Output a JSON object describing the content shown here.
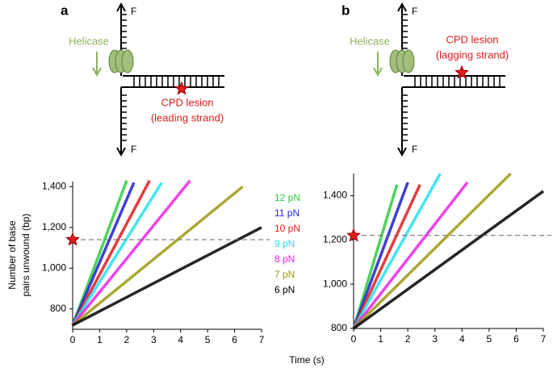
{
  "chart_data": [
    {
      "type": "line",
      "panel_label": "a",
      "annotations": {
        "helicase": "Helicase",
        "lesion": "CPD lesion",
        "strand": "(leading strand)",
        "force_top": "F",
        "force_bottom": "F"
      },
      "xlabel": "Time (s)",
      "ylabel": [
        "Number of base",
        "pairs unwound (bp)"
      ],
      "xlim": [
        0,
        7
      ],
      "ylim": [
        700,
        1425
      ],
      "xticks": [
        0,
        1,
        2,
        3,
        4,
        5,
        6,
        7
      ],
      "yticks": [
        800,
        {
          "value": 1000,
          "label": "1,000"
        },
        {
          "value": 1200,
          "label": "1,200"
        },
        {
          "value": 1400,
          "label": "1,400"
        }
      ],
      "reference_line": 1140,
      "lesion_marker": {
        "x": 0,
        "y": 1140
      },
      "series": [
        {
          "name": "12 pN",
          "color": "#2ecc40",
          "x": [
            0,
            2.0
          ],
          "values": [
            720,
            1430
          ]
        },
        {
          "name": "11 pN",
          "color": "#1f1fd0",
          "x": [
            0,
            2.27
          ],
          "values": [
            720,
            1420
          ]
        },
        {
          "name": "10 pN",
          "color": "#e01b1b",
          "x": [
            0,
            2.85
          ],
          "values": [
            720,
            1430
          ]
        },
        {
          "name": "9 pN",
          "color": "#22e0f0",
          "x": [
            0,
            3.3
          ],
          "values": [
            720,
            1420
          ]
        },
        {
          "name": "8 pN",
          "color": "#f020e8",
          "x": [
            0,
            4.35
          ],
          "values": [
            720,
            1430
          ]
        },
        {
          "name": "7 pN",
          "color": "#9a9a10",
          "x": [
            0,
            6.3
          ],
          "values": [
            720,
            1400
          ]
        },
        {
          "name": "6 pN",
          "color": "#000000",
          "x": [
            0,
            7
          ],
          "values": [
            720,
            1200
          ]
        }
      ]
    },
    {
      "type": "line",
      "panel_label": "b",
      "annotations": {
        "helicase": "Helicase",
        "lesion": "CPD lesion",
        "strand": "(lagging strand)",
        "force_top": "F",
        "force_bottom": "F"
      },
      "xlim": [
        0,
        7
      ],
      "ylim": [
        800,
        1500
      ],
      "xticks": [
        0,
        1,
        2,
        3,
        4,
        5,
        6,
        7
      ],
      "yticks": [
        800,
        {
          "value": 1000,
          "label": "1,000"
        },
        {
          "value": 1200,
          "label": "1,200"
        },
        {
          "value": 1400,
          "label": "1,400"
        }
      ],
      "reference_line": 1220,
      "lesion_marker": {
        "x": 0,
        "y": 1220
      },
      "series": [
        {
          "color": "#2ecc40",
          "x": [
            0,
            1.6
          ],
          "values": [
            800,
            1450
          ]
        },
        {
          "color": "#1f1fd0",
          "x": [
            0,
            2.0
          ],
          "values": [
            800,
            1460
          ]
        },
        {
          "color": "#e01b1b",
          "x": [
            0,
            2.45
          ],
          "values": [
            800,
            1450
          ]
        },
        {
          "color": "#22e0f0",
          "x": [
            0,
            3.2
          ],
          "values": [
            800,
            1500
          ]
        },
        {
          "color": "#f020e8",
          "x": [
            0,
            4.2
          ],
          "values": [
            800,
            1460
          ]
        },
        {
          "color": "#9a9a10",
          "x": [
            0,
            5.8
          ],
          "values": [
            800,
            1500
          ]
        },
        {
          "color": "#000000",
          "x": [
            0,
            7
          ],
          "values": [
            800,
            1420
          ]
        }
      ]
    }
  ]
}
